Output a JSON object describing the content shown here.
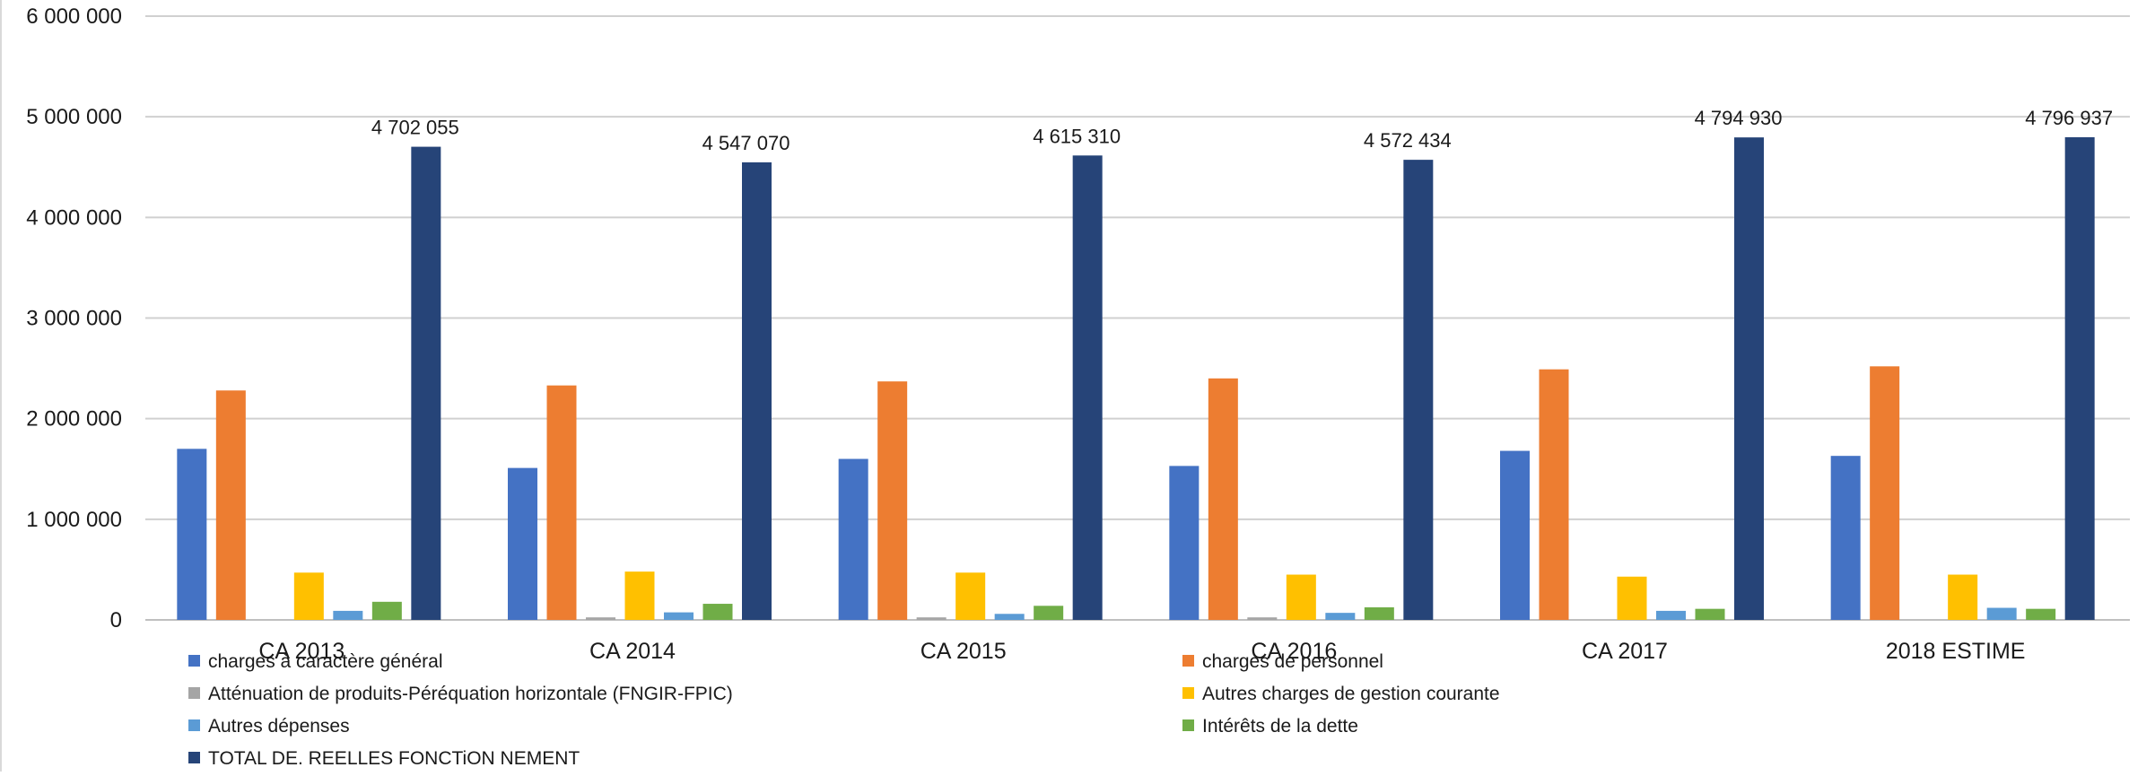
{
  "chart_data": {
    "type": "bar",
    "title": "",
    "xlabel": "",
    "ylabel": "",
    "ylim": [
      0,
      6000000
    ],
    "yticks": [
      0,
      1000000,
      2000000,
      3000000,
      4000000,
      5000000,
      6000000
    ],
    "ytick_labels": [
      "0",
      "1 000 000",
      "2 000 000",
      "3 000 000",
      "4 000 000",
      "5 000 000",
      "6 000 000"
    ],
    "grid": true,
    "legend_position": "bottom",
    "categories": [
      "CA 2013",
      "CA 2014",
      "CA 2015",
      "CA 2016",
      "CA 2017",
      "2018 ESTIME"
    ],
    "series": [
      {
        "name": "charges à caractère général",
        "color": "#4472c4",
        "values": [
          1700000,
          1510000,
          1600000,
          1530000,
          1680000,
          1630000
        ]
      },
      {
        "name": "charges de personnel",
        "color": "#ed7d31",
        "values": [
          2280000,
          2330000,
          2370000,
          2400000,
          2490000,
          2520000
        ]
      },
      {
        "name": "Atténuation de produits-Péréquation horizontale (FNGIR-FPIC)",
        "color": "#a5a5a5",
        "values": [
          0,
          25000,
          25000,
          25000,
          0,
          0
        ]
      },
      {
        "name": "Autres charges de gestion courante",
        "color": "#ffc000",
        "values": [
          470000,
          480000,
          470000,
          450000,
          430000,
          450000
        ]
      },
      {
        "name": "Autres dépenses",
        "color": "#5b9bd5",
        "values": [
          90000,
          75000,
          60000,
          70000,
          90000,
          120000
        ]
      },
      {
        "name": "Intérêts de la dette",
        "color": "#70ad47",
        "values": [
          180000,
          160000,
          140000,
          125000,
          110000,
          110000
        ]
      },
      {
        "name": "TOTAL DE. REELLES FONCTiON NEMENT",
        "color": "#264478",
        "values": [
          4702055,
          4547070,
          4615310,
          4572434,
          4794930,
          4796937
        ],
        "data_labels": [
          "4 702 055",
          "4 547 070",
          "4 615 310",
          "4 572 434",
          "4 794 930",
          "4 796 937"
        ]
      }
    ]
  }
}
